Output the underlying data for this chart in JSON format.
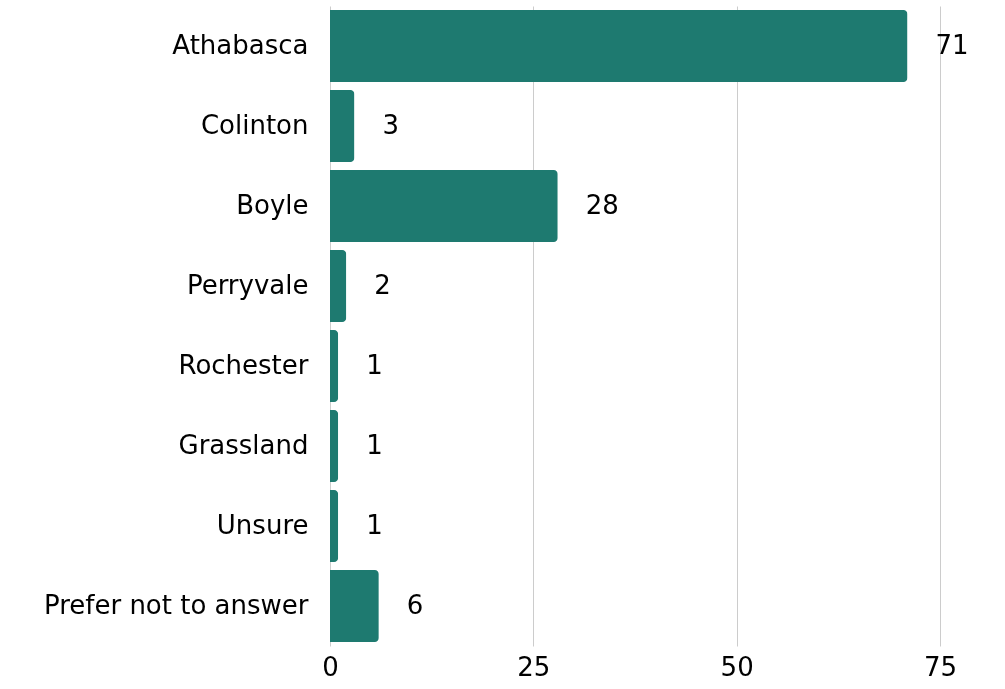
{
  "chart_data": {
    "type": "bar",
    "orientation": "horizontal",
    "categories": [
      "Athabasca",
      "Colinton",
      "Boyle",
      "Perryvale",
      "Rochester ",
      "Grassland",
      "Unsure",
      "Prefer not to answer"
    ],
    "values": [
      71,
      3,
      28,
      2,
      1,
      1,
      1,
      6
    ],
    "color": "#1e7a70",
    "xlim": [
      0,
      75
    ],
    "xticks": [
      0,
      25,
      50,
      75
    ],
    "grid": "x",
    "data_labels": true
  }
}
